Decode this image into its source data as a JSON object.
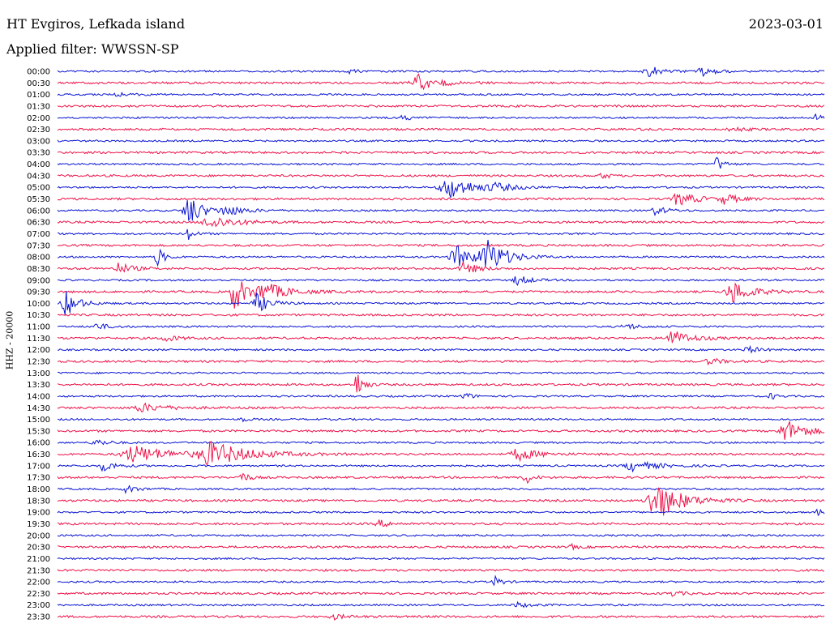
{
  "header": {
    "station": "HT Evgiros, Lefkada island",
    "date": "2023-03-01",
    "filter": "Applied filter: WWSSN-SP",
    "channel_label": "HHZ - 20000"
  },
  "colors": {
    "even": "#0a14d2",
    "odd": "#ee1148"
  },
  "chart_data": {
    "type": "line",
    "title": "HT Evgiros, Lefkada island",
    "ylabel": "HHZ - 20000",
    "xlabel": "",
    "grid": false,
    "x_range_minutes": [
      0,
      30
    ],
    "rows": [
      {
        "label": "00:00",
        "events": [
          [
            0.38,
            5,
            1
          ],
          [
            0.77,
            8,
            2
          ],
          [
            0.84,
            6,
            2
          ]
        ]
      },
      {
        "label": "00:30",
        "events": [
          [
            0.47,
            12,
            3
          ]
        ]
      },
      {
        "label": "01:00",
        "events": [
          [
            0.08,
            3,
            2
          ]
        ]
      },
      {
        "label": "01:30",
        "events": []
      },
      {
        "label": "02:00",
        "events": [
          [
            0.45,
            3,
            2
          ],
          [
            0.99,
            5,
            1
          ]
        ]
      },
      {
        "label": "02:30",
        "events": [
          [
            0.88,
            3,
            2
          ]
        ]
      },
      {
        "label": "03:00",
        "events": []
      },
      {
        "label": "03:30",
        "events": []
      },
      {
        "label": "04:00",
        "events": [
          [
            0.86,
            10,
            1
          ]
        ]
      },
      {
        "label": "04:30",
        "events": [
          [
            0.71,
            5,
            1
          ]
        ]
      },
      {
        "label": "05:00",
        "events": [
          [
            0.51,
            14,
            4
          ],
          [
            0.57,
            4,
            3
          ]
        ]
      },
      {
        "label": "05:30",
        "events": [
          [
            0.81,
            8,
            3
          ],
          [
            0.87,
            6,
            2
          ]
        ]
      },
      {
        "label": "06:00",
        "events": [
          [
            0.17,
            22,
            2
          ],
          [
            0.22,
            6,
            3
          ],
          [
            0.78,
            5,
            2
          ]
        ]
      },
      {
        "label": "06:30",
        "events": [
          [
            0.2,
            8,
            4
          ]
        ]
      },
      {
        "label": "07:00",
        "events": [
          [
            0.17,
            8,
            1
          ]
        ]
      },
      {
        "label": "07:30",
        "events": []
      },
      {
        "label": "08:00",
        "events": [
          [
            0.13,
            14,
            1
          ],
          [
            0.52,
            14,
            3
          ],
          [
            0.56,
            20,
            3
          ]
        ]
      },
      {
        "label": "08:30",
        "events": [
          [
            0.08,
            7,
            2
          ],
          [
            0.53,
            8,
            2
          ]
        ]
      },
      {
        "label": "09:00",
        "events": [
          [
            0.6,
            6,
            2
          ]
        ]
      },
      {
        "label": "09:30",
        "events": [
          [
            0.23,
            24,
            2
          ],
          [
            0.27,
            10,
            4
          ],
          [
            0.88,
            14,
            3
          ]
        ]
      },
      {
        "label": "10:00",
        "events": [
          [
            0.01,
            16,
            2
          ],
          [
            0.26,
            12,
            2
          ]
        ]
      },
      {
        "label": "10:30",
        "events": []
      },
      {
        "label": "11:00",
        "events": [
          [
            0.05,
            4,
            2
          ],
          [
            0.74,
            4,
            2
          ]
        ]
      },
      {
        "label": "11:30",
        "events": [
          [
            0.14,
            4,
            2
          ],
          [
            0.8,
            10,
            3
          ]
        ]
      },
      {
        "label": "12:00",
        "events": [
          [
            0.9,
            4,
            2
          ]
        ]
      },
      {
        "label": "12:30",
        "events": [
          [
            0.85,
            4,
            2
          ]
        ]
      },
      {
        "label": "13:00",
        "events": []
      },
      {
        "label": "13:30",
        "events": [
          [
            0.39,
            18,
            1
          ]
        ]
      },
      {
        "label": "14:00",
        "events": [
          [
            0.53,
            6,
            1
          ],
          [
            0.93,
            4,
            1
          ]
        ]
      },
      {
        "label": "14:30",
        "events": [
          [
            0.11,
            5,
            4
          ]
        ]
      },
      {
        "label": "15:00",
        "events": [
          [
            0.24,
            3,
            1
          ]
        ]
      },
      {
        "label": "15:30",
        "events": [
          [
            0.95,
            14,
            3
          ]
        ]
      },
      {
        "label": "16:00",
        "events": [
          [
            0.05,
            4,
            2
          ]
        ]
      },
      {
        "label": "16:30",
        "events": [
          [
            0.1,
            10,
            6
          ],
          [
            0.2,
            14,
            6
          ],
          [
            0.6,
            8,
            3
          ]
        ]
      },
      {
        "label": "17:00",
        "events": [
          [
            0.06,
            6,
            2
          ],
          [
            0.75,
            6,
            4
          ]
        ]
      },
      {
        "label": "17:30",
        "events": [
          [
            0.24,
            8,
            1
          ],
          [
            0.61,
            9,
            1
          ]
        ]
      },
      {
        "label": "18:00",
        "events": [
          [
            0.09,
            4,
            2
          ]
        ]
      },
      {
        "label": "18:30",
        "events": [
          [
            0.78,
            24,
            4
          ]
        ]
      },
      {
        "label": "19:00",
        "events": [
          [
            0.99,
            4,
            1
          ]
        ]
      },
      {
        "label": "19:30",
        "events": [
          [
            0.42,
            4,
            2
          ]
        ]
      },
      {
        "label": "20:00",
        "events": []
      },
      {
        "label": "20:30",
        "events": [
          [
            0.67,
            3,
            1
          ]
        ]
      },
      {
        "label": "21:00",
        "events": []
      },
      {
        "label": "21:30",
        "events": []
      },
      {
        "label": "22:00",
        "events": [
          [
            0.57,
            8,
            1
          ]
        ]
      },
      {
        "label": "22:30",
        "events": [
          [
            0.8,
            3,
            2
          ]
        ]
      },
      {
        "label": "23:00",
        "events": [
          [
            0.6,
            3,
            2
          ]
        ]
      },
      {
        "label": "23:30",
        "events": [
          [
            0.36,
            3,
            2
          ]
        ]
      }
    ]
  }
}
